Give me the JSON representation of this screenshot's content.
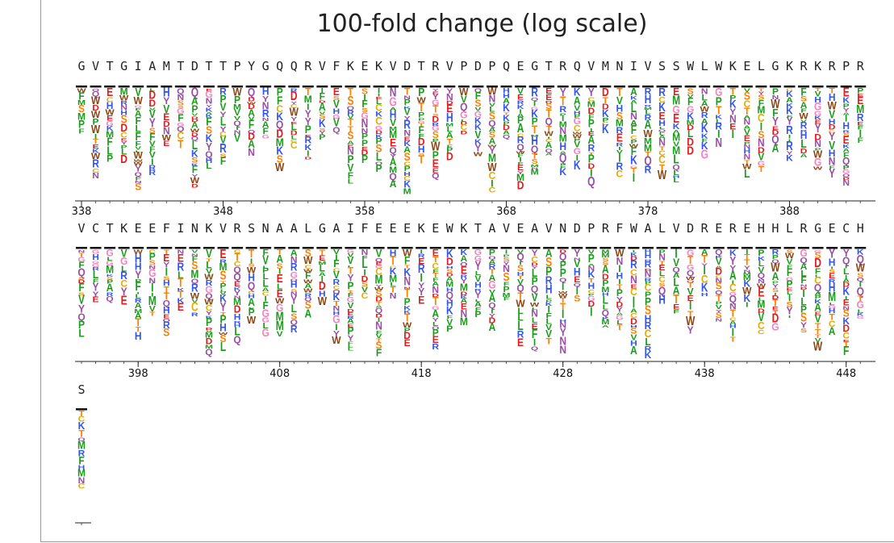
{
  "chart_data": {
    "type": "sequence-logo",
    "title": "100-fold change (log scale)",
    "start_position": 338,
    "rows": [
      {
        "sequence": "GVTGIAMTDTTPYGQQRVFKEKVDTRVPDPQEGTRQVMNIVSSWLWKELGKRKRPR",
        "ticks": [
          338,
          348,
          358,
          368,
          378,
          388
        ]
      },
      {
        "sequence": "VCTKEEFINKVRSNAALGAIFEEEKEWKTAVEAVNDPRFWALVDREREHHLRGECH",
        "ticks": [
          398,
          408,
          418,
          428,
          438,
          448
        ]
      },
      {
        "sequence": "S",
        "ticks": []
      }
    ],
    "colors": {
      "G": "#f781bf",
      "S": "#ff7f00",
      "T": "#ff7f00",
      "Y": "#984ea3",
      "C": "#e6ab02",
      "N": "#984ea3",
      "Q": "#984ea3",
      "K": "#3355ee",
      "R": "#3355ee",
      "H": "#3355ee",
      "D": "#e41a1c",
      "E": "#e41a1c",
      "P": "#1a9c1a",
      "A": "#1a9c1a",
      "V": "#1a9c1a",
      "L": "#1a9c1a",
      "I": "#1a9c1a",
      "M": "#1a9c1a",
      "F": "#1a9c1a",
      "W": "#8b4513"
    }
  }
}
